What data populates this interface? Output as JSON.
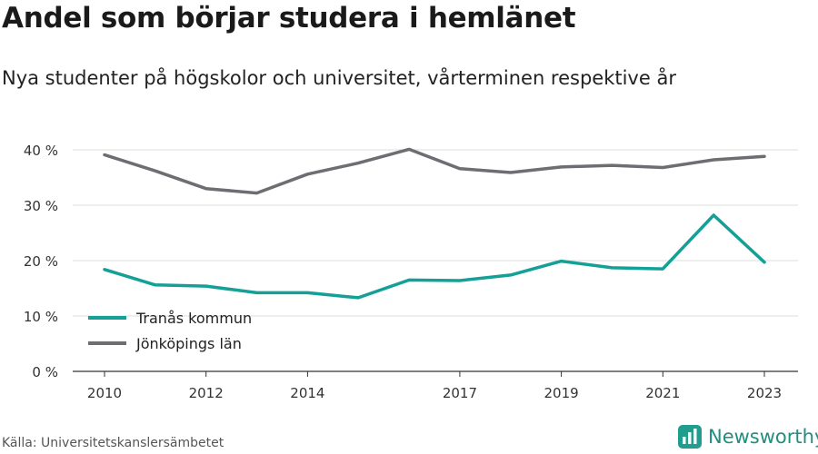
{
  "title": "Andel som börjar studera i hemlänet",
  "subtitle": "Nya studenter på högskolor och universitet, vårterminen respektive år",
  "source": "Källa: Universitetskanslersämbetet",
  "brand": {
    "name": "Newsworthy",
    "icon": "newsworthy-logo-icon",
    "color": "#1f9e8f"
  },
  "chart_data": {
    "type": "line",
    "x": [
      2010,
      2011,
      2012,
      2013,
      2014,
      2015,
      2016,
      2017,
      2018,
      2019,
      2020,
      2021,
      2022,
      2023
    ],
    "x_tick_labels": [
      "2010",
      "2012",
      "2014",
      "2017",
      "2019",
      "2021",
      "2023"
    ],
    "x_tick_values": [
      2010,
      2012,
      2014,
      2017,
      2019,
      2021,
      2023
    ],
    "y_tick_labels": [
      "0 %",
      "10 %",
      "20 %",
      "30 %",
      "40 %"
    ],
    "y_tick_values": [
      0,
      10,
      20,
      30,
      40
    ],
    "ylim": [
      0,
      40
    ],
    "xlim": [
      2010,
      2023
    ],
    "grid": true,
    "legend_position": "bottom-left",
    "series": [
      {
        "name": "Tranås kommun",
        "color": "#14a096",
        "values": [
          18.4,
          15.6,
          15.4,
          14.2,
          14.2,
          13.3,
          16.5,
          16.4,
          17.4,
          19.9,
          18.7,
          18.5,
          28.2,
          19.7
        ]
      },
      {
        "name": "Jönköpings län",
        "color": "#6e6d72",
        "values": [
          39.1,
          36.2,
          33.0,
          32.2,
          35.6,
          37.6,
          40.1,
          36.6,
          35.9,
          36.9,
          37.2,
          36.8,
          38.2,
          38.8
        ]
      }
    ]
  }
}
